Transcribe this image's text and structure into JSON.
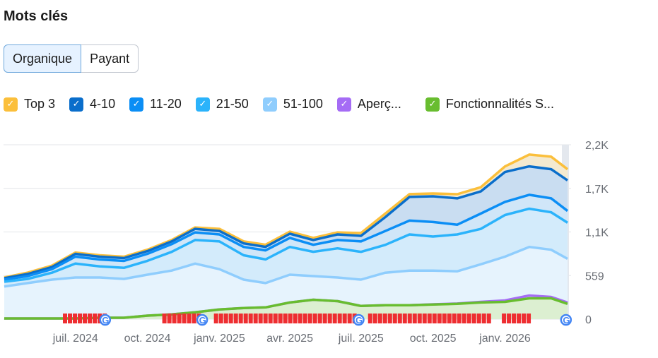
{
  "title": "Mots clés",
  "toggle": {
    "options": [
      "Organique",
      "Payant"
    ],
    "selected": "Organique"
  },
  "legend": [
    {
      "label": "Top 3",
      "color": "#fbbf3b",
      "checked": true
    },
    {
      "label": "4-10",
      "color": "#0a6ecb",
      "checked": true
    },
    {
      "label": "11-20",
      "color": "#0b8ef5",
      "checked": true
    },
    {
      "label": "21-50",
      "color": "#2bb3fb",
      "checked": true
    },
    {
      "label": "51-100",
      "color": "#8fcdfd",
      "checked": true
    },
    {
      "label": "Aperç...",
      "color": "#a56cf5",
      "checked": true
    },
    {
      "label": "Fonctionnalités S...",
      "color": "#68bd2f",
      "checked": true
    }
  ],
  "chart_data": {
    "type": "area",
    "stacked": true,
    "ylim": [
      0,
      2236
    ],
    "y_ticks": [
      "0",
      "559",
      "1,1K",
      "1,7K",
      "2,2K"
    ],
    "y_tick_values": [
      0,
      559,
      1118,
      1677,
      2236
    ],
    "y_axis_position": "right",
    "grid": true,
    "x_ticks": [
      "juil. 2024",
      "oct. 2024",
      "janv. 2025",
      "avr. 2025",
      "juil. 2025",
      "oct. 2025",
      "janv. 2026"
    ],
    "x_tick_dates": [
      "2024-07-01",
      "2024-10-01",
      "2025-01-01",
      "2025-04-01",
      "2025-07-01",
      "2025-10-01",
      "2026-01-01"
    ],
    "x": [
      "2024-04-01",
      "2024-05-01",
      "2024-06-01",
      "2024-07-01",
      "2024-08-01",
      "2024-09-01",
      "2024-10-01",
      "2024-11-01",
      "2024-12-01",
      "2025-01-01",
      "2025-02-01",
      "2025-03-01",
      "2025-04-01",
      "2025-05-01",
      "2025-06-01",
      "2025-07-01",
      "2025-08-01",
      "2025-09-01",
      "2025-10-01",
      "2025-11-01",
      "2025-12-01",
      "2026-01-01",
      "2026-02-01",
      "2026-03-01",
      "2026-03-22"
    ],
    "series": [
      {
        "name": "51-100",
        "values": [
          418,
          463,
          507,
          534,
          534,
          516,
          570,
          623,
          712,
          641,
          507,
          463,
          570,
          552,
          534,
          507,
          596,
          623,
          623,
          614,
          703,
          801,
          926,
          890,
          774
        ]
      },
      {
        "name": "21-50",
        "values": [
          62,
          53,
          89,
          178,
          142,
          142,
          178,
          240,
          303,
          356,
          312,
          303,
          356,
          312,
          374,
          356,
          356,
          463,
          436,
          472,
          454,
          534,
          490,
          481,
          463
        ]
      },
      {
        "name": "11-20",
        "values": [
          27,
          36,
          45,
          89,
          89,
          89,
          89,
          98,
          98,
          89,
          107,
          116,
          116,
          89,
          107,
          134,
          178,
          178,
          187,
          125,
          196,
          169,
          178,
          178,
          151
        ]
      },
      {
        "name": "4-10",
        "values": [
          18,
          27,
          27,
          36,
          36,
          36,
          36,
          36,
          45,
          45,
          45,
          45,
          53,
          62,
          71,
          71,
          178,
          303,
          329,
          338,
          285,
          383,
          365,
          374,
          392
        ]
      },
      {
        "name": "Top 3",
        "values": [
          9,
          18,
          18,
          18,
          18,
          18,
          18,
          18,
          18,
          27,
          27,
          27,
          27,
          27,
          27,
          36,
          45,
          36,
          36,
          53,
          53,
          71,
          151,
          160,
          142
        ]
      }
    ],
    "overlay_series": [
      {
        "name": "Aperç...",
        "values": [
          9,
          9,
          9,
          9,
          18,
          18,
          45,
          62,
          89,
          125,
          142,
          151,
          214,
          249,
          231,
          169,
          178,
          178,
          190,
          200,
          222,
          240,
          303,
          285,
          214
        ]
      },
      {
        "name": "Fonctionnalités S...",
        "values": [
          9,
          9,
          9,
          9,
          18,
          18,
          45,
          62,
          89,
          125,
          142,
          151,
          214,
          249,
          231,
          169,
          178,
          178,
          187,
          196,
          214,
          222,
          267,
          267,
          196
        ]
      }
    ],
    "google_update_markers": [
      "2024-08-08",
      "2024-12-10",
      "2025-06-28",
      "2026-03-20"
    ],
    "note_marker_ranges": [
      [
        "2024-06-15",
        "2024-08-05"
      ],
      [
        "2024-10-20",
        "2024-12-05"
      ],
      [
        "2024-12-25",
        "2025-06-25"
      ],
      [
        "2025-07-10",
        "2025-12-15"
      ],
      [
        "2025-12-28",
        "2026-02-02"
      ]
    ]
  }
}
